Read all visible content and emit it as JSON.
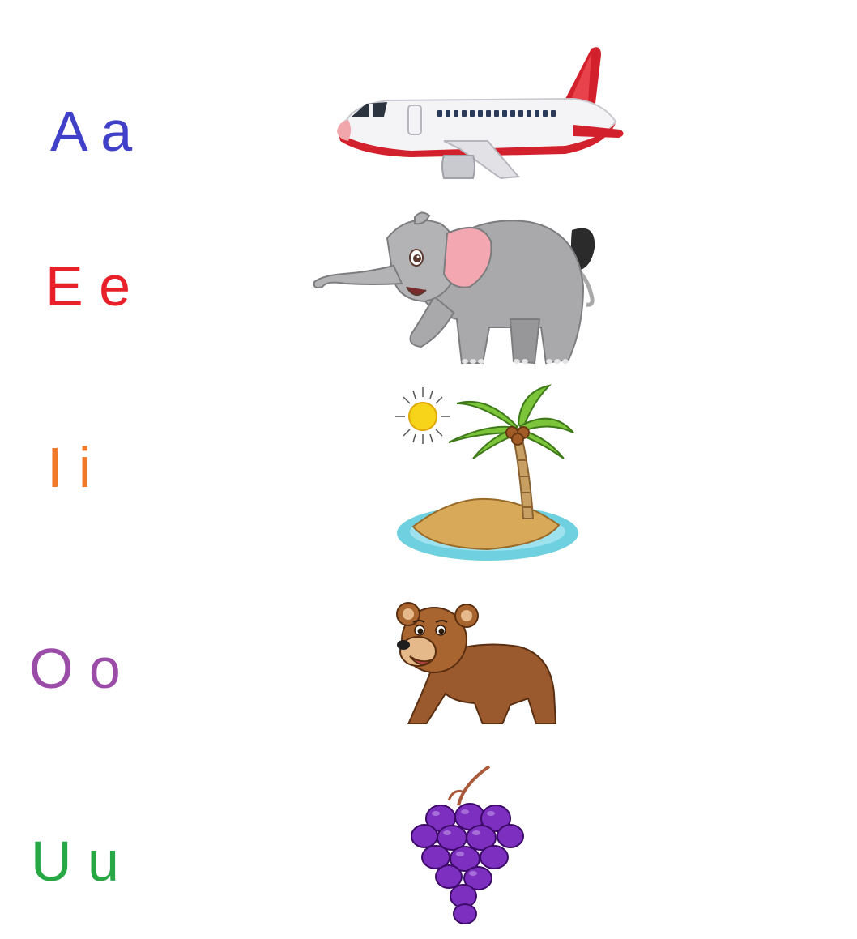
{
  "rows": [
    {
      "letters": "A a",
      "color": "#4040C8",
      "icon": "airplane-icon"
    },
    {
      "letters": "E e",
      "color": "#E8202A",
      "icon": "elephant-icon"
    },
    {
      "letters": "I i",
      "color": "#F07A2A",
      "icon": "palm-island-icon"
    },
    {
      "letters": "O o",
      "color": "#9B4BA8",
      "icon": "bear-icon"
    },
    {
      "letters": "U u",
      "color": "#27A844",
      "icon": "grapes-icon"
    }
  ]
}
